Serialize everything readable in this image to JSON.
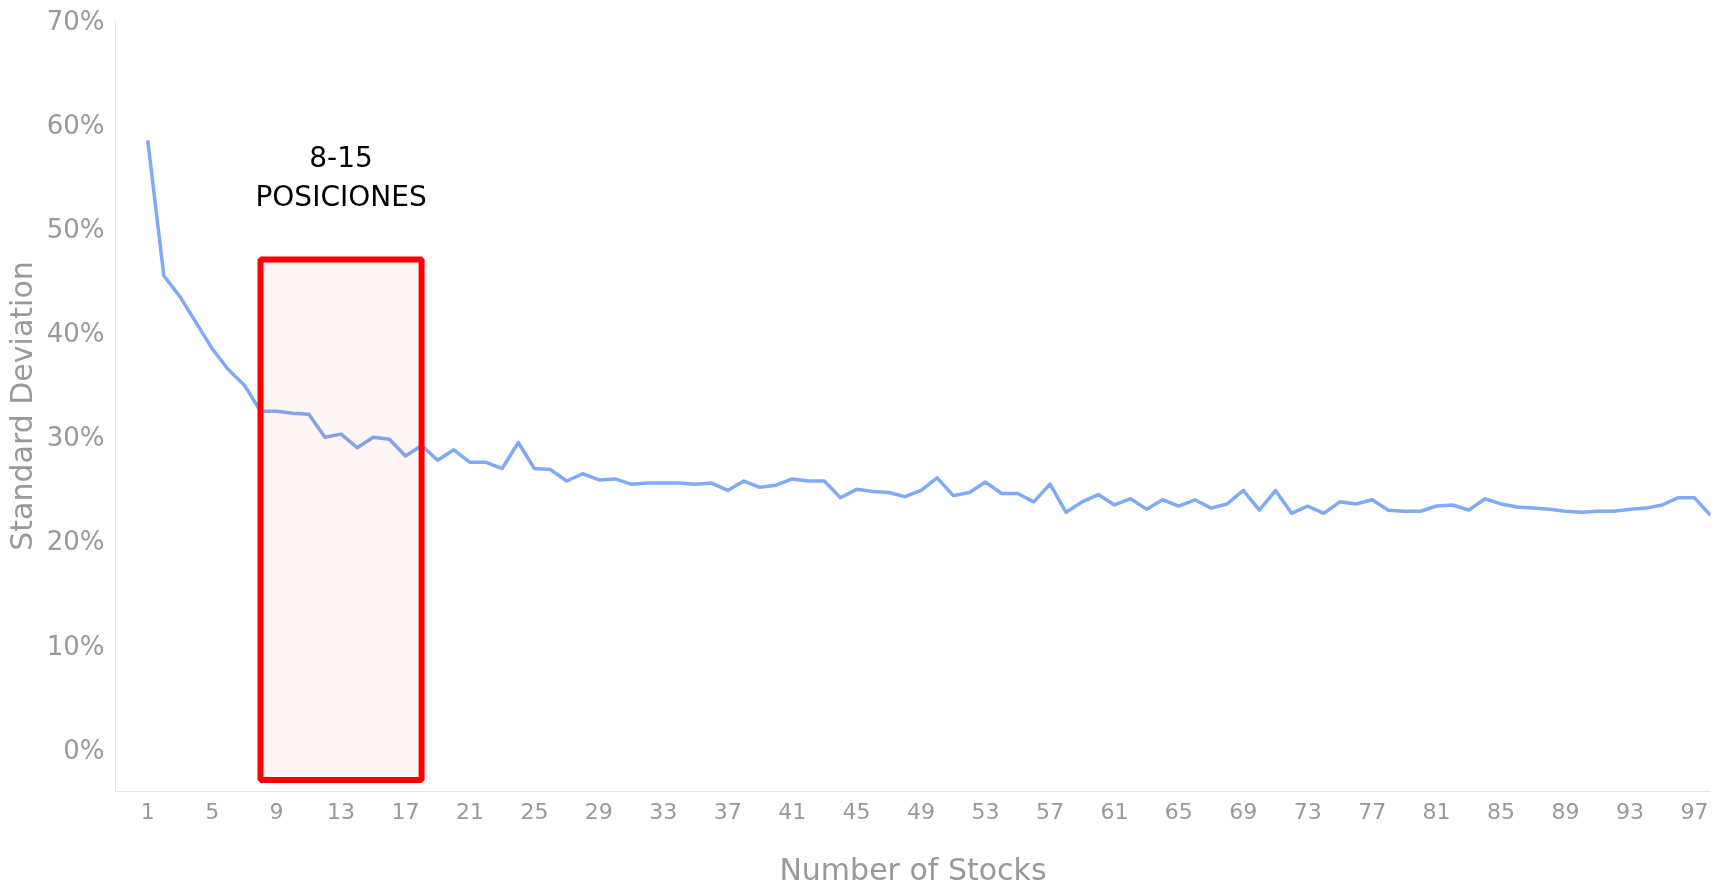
{
  "chart_data": {
    "type": "line",
    "xlabel": "Number of Stocks",
    "ylabel": "Standard Deviation",
    "x": [
      1,
      2,
      3,
      4,
      5,
      6,
      7,
      8,
      9,
      10,
      11,
      12,
      13,
      14,
      15,
      16,
      17,
      18,
      19,
      20,
      21,
      22,
      23,
      24,
      25,
      26,
      27,
      28,
      29,
      30,
      31,
      32,
      33,
      34,
      35,
      36,
      37,
      38,
      39,
      40,
      41,
      42,
      43,
      44,
      45,
      46,
      47,
      48,
      49,
      50,
      51,
      52,
      53,
      54,
      55,
      56,
      57,
      58,
      59,
      60,
      61,
      62,
      63,
      64,
      65,
      66,
      67,
      68,
      69,
      70,
      71,
      72,
      73,
      74,
      75,
      76,
      77,
      78,
      79,
      80,
      81,
      82,
      83,
      84,
      85,
      86,
      87,
      88,
      89,
      90,
      91,
      92,
      93,
      94,
      95,
      96,
      97,
      98
    ],
    "series": [
      {
        "color": "#7faaf5",
        "values": [
          58.5,
          45.5,
          43.5,
          41,
          38.5,
          36.5,
          35,
          32.5,
          32.5,
          32.3,
          32.2,
          30,
          30.3,
          29,
          30,
          29.8,
          28.2,
          29.2,
          27.8,
          28.8,
          27.6,
          27.6,
          27,
          29.5,
          27,
          26.9,
          25.8,
          26.5,
          25.9,
          26,
          25.5,
          25.6,
          25.6,
          25.6,
          25.5,
          25.6,
          24.9,
          25.8,
          25.2,
          25.4,
          26,
          25.8,
          25.8,
          24.2,
          25,
          24.8,
          24.7,
          24.3,
          24.9,
          26.1,
          24.4,
          24.7,
          25.7,
          24.6,
          24.6,
          23.8,
          25.5,
          22.8,
          23.8,
          24.5,
          23.5,
          24.1,
          23.1,
          24,
          23.4,
          24,
          23.2,
          23.6,
          24.9,
          23,
          24.9,
          22.7,
          23.4,
          22.7,
          23.8,
          23.6,
          24,
          23,
          22.9,
          22.9,
          23.4,
          23.5,
          23,
          24.1,
          23.6,
          23.3,
          23.2,
          23.1,
          22.9,
          22.8,
          22.9,
          22.9,
          23.1,
          23.2,
          23.5,
          24.2,
          24.2,
          22.5
        ]
      }
    ],
    "xlim": [
      -1,
      98
    ],
    "ylim": [
      -4,
      70
    ],
    "xticks": [
      1,
      5,
      9,
      13,
      17,
      21,
      25,
      29,
      33,
      37,
      41,
      45,
      49,
      53,
      57,
      61,
      65,
      69,
      73,
      77,
      81,
      85,
      89,
      93,
      97
    ],
    "yticks": [
      {
        "value": 0,
        "label": "0%"
      },
      {
        "value": 10,
        "label": "10%"
      },
      {
        "value": 20,
        "label": "20%"
      },
      {
        "value": 30,
        "label": "30%"
      },
      {
        "value": 40,
        "label": "40%"
      },
      {
        "value": 50,
        "label": "50%"
      },
      {
        "value": 60,
        "label": "60%"
      },
      {
        "value": 70,
        "label": "70%"
      }
    ],
    "bands": [
      {
        "axis": "x",
        "from": 8,
        "to": 18,
        "label": "8-15\nPOSICIONES",
        "color": "#ff0000"
      }
    ],
    "grid": false,
    "marker": "none",
    "line_style": "solid"
  }
}
